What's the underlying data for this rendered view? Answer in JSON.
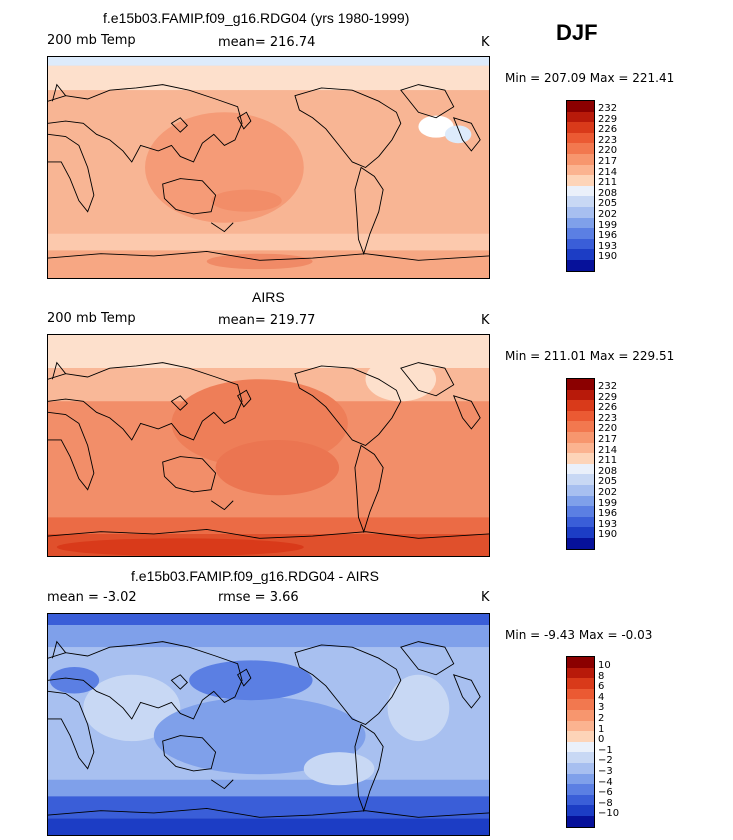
{
  "season": "DJF",
  "panels": [
    {
      "title": "f.e15b03.FAMIP.f09_g16.RDG04 (yrs 1980-1999)",
      "variable": "200 mb Temp",
      "stat": "mean= 216.74",
      "units": "K",
      "minmax": "Min = 207.09 Max = 221.41",
      "colorbar": {
        "labels": [
          "232",
          "229",
          "226",
          "223",
          "220",
          "217",
          "214",
          "211",
          "208",
          "205",
          "202",
          "199",
          "196",
          "193",
          "190"
        ],
        "colors": [
          "#8b0000",
          "#b81a0a",
          "#d93a1a",
          "#eb5a33",
          "#f2784f",
          "#f7966e",
          "#fbb390",
          "#fdd4b8",
          "#eaf0fa",
          "#c8d8f4",
          "#a7bff0",
          "#7fa0ea",
          "#5b7fe3",
          "#3a5ed8",
          "#1c3dc5",
          "#06119a"
        ]
      },
      "map": {
        "background": "#fbc6a6",
        "bands": [
          {
            "color": "#ddebfb",
            "y0": 0,
            "y1": 8
          },
          {
            "color": "#fde0cc",
            "y0": 8,
            "y1": 30
          },
          {
            "color": "#f8b594",
            "y0": 30,
            "y1": 160
          },
          {
            "color": "#fcc9ad",
            "y0": 160,
            "y1": 175
          },
          {
            "color": "#f7a783",
            "y0": 175,
            "y1": 200
          }
        ],
        "blobs": [
          {
            "color": "#f59b77",
            "cx": 200,
            "cy": 100,
            "rx": 90,
            "ry": 50
          },
          {
            "color": "#f28d68",
            "cx": 225,
            "cy": 130,
            "rx": 40,
            "ry": 10
          },
          {
            "color": "#f08a66",
            "cx": 240,
            "cy": 185,
            "rx": 60,
            "ry": 7
          },
          {
            "color": "#ffffff",
            "cx": 440,
            "cy": 63,
            "rx": 20,
            "ry": 10
          },
          {
            "color": "#ddebfb",
            "cx": 465,
            "cy": 70,
            "rx": 15,
            "ry": 8
          }
        ]
      }
    },
    {
      "title": "AIRS",
      "variable": "200 mb Temp",
      "stat": "mean= 219.77",
      "units": "K",
      "minmax": "Min = 211.01 Max = 229.51",
      "colorbar": {
        "labels": [
          "232",
          "229",
          "226",
          "223",
          "220",
          "217",
          "214",
          "211",
          "208",
          "205",
          "202",
          "199",
          "196",
          "193",
          "190"
        ],
        "colors": [
          "#8b0000",
          "#b81a0a",
          "#d93a1a",
          "#eb5a33",
          "#f2784f",
          "#f7966e",
          "#fbb390",
          "#fdd4b8",
          "#eaf0fa",
          "#c8d8f4",
          "#a7bff0",
          "#7fa0ea",
          "#5b7fe3",
          "#3a5ed8",
          "#1c3dc5",
          "#06119a"
        ]
      },
      "map": {
        "background": "#f7a07c",
        "bands": [
          {
            "color": "#fde0cc",
            "y0": 0,
            "y1": 30
          },
          {
            "color": "#f9b898",
            "y0": 30,
            "y1": 60
          },
          {
            "color": "#f28e69",
            "y0": 60,
            "y1": 165
          },
          {
            "color": "#eb6b45",
            "y0": 165,
            "y1": 180
          },
          {
            "color": "#e0502c",
            "y0": 180,
            "y1": 200
          }
        ],
        "blobs": [
          {
            "color": "#ee7e58",
            "cx": 240,
            "cy": 80,
            "rx": 100,
            "ry": 40
          },
          {
            "color": "#eb7551",
            "cx": 260,
            "cy": 120,
            "rx": 70,
            "ry": 25
          },
          {
            "color": "#fde0cc",
            "cx": 400,
            "cy": 40,
            "rx": 40,
            "ry": 20
          },
          {
            "color": "#d93a1a",
            "cx": 150,
            "cy": 192,
            "rx": 140,
            "ry": 8
          }
        ]
      }
    },
    {
      "title": "f.e15b03.FAMIP.f09_g16.RDG04 - AIRS",
      "variable": "mean =   -3.02",
      "stat": "rmse =    3.66",
      "units": "K",
      "minmax": "Min =  -9.43 Max =  -0.03",
      "colorbar": {
        "labels": [
          "10",
          "8",
          "6",
          "4",
          "3",
          "2",
          "1",
          "0",
          "−1",
          "−2",
          "−3",
          "−4",
          "−6",
          "−8",
          "−10"
        ],
        "colors": [
          "#8b0000",
          "#b81a0a",
          "#d93a1a",
          "#eb5a33",
          "#f2784f",
          "#f7966e",
          "#fbb390",
          "#fdd4b8",
          "#eaf0fa",
          "#c8d8f4",
          "#a7bff0",
          "#7fa0ea",
          "#5b7fe3",
          "#3a5ed8",
          "#1c3dc5",
          "#06119a"
        ]
      },
      "map": {
        "background": "#a8c0f0",
        "bands": [
          {
            "color": "#3a5ed8",
            "y0": 0,
            "y1": 10
          },
          {
            "color": "#7fa0ea",
            "y0": 10,
            "y1": 30
          },
          {
            "color": "#a8c0f0",
            "y0": 30,
            "y1": 150
          },
          {
            "color": "#7fa0ea",
            "y0": 150,
            "y1": 165
          },
          {
            "color": "#3a5ed8",
            "y0": 165,
            "y1": 185
          },
          {
            "color": "#1c3dc5",
            "y0": 185,
            "y1": 200
          }
        ],
        "blobs": [
          {
            "color": "#c8d8f4",
            "cx": 95,
            "cy": 85,
            "rx": 55,
            "ry": 30
          },
          {
            "color": "#c8d8f4",
            "cx": 420,
            "cy": 85,
            "rx": 35,
            "ry": 30
          },
          {
            "color": "#7fa0ea",
            "cx": 240,
            "cy": 110,
            "rx": 120,
            "ry": 35
          },
          {
            "color": "#5b7fe3",
            "cx": 230,
            "cy": 60,
            "rx": 70,
            "ry": 18
          },
          {
            "color": "#5b7fe3",
            "cx": 30,
            "cy": 60,
            "rx": 28,
            "ry": 12
          },
          {
            "color": "#c8d8f4",
            "cx": 330,
            "cy": 140,
            "rx": 40,
            "ry": 15
          }
        ]
      }
    }
  ]
}
